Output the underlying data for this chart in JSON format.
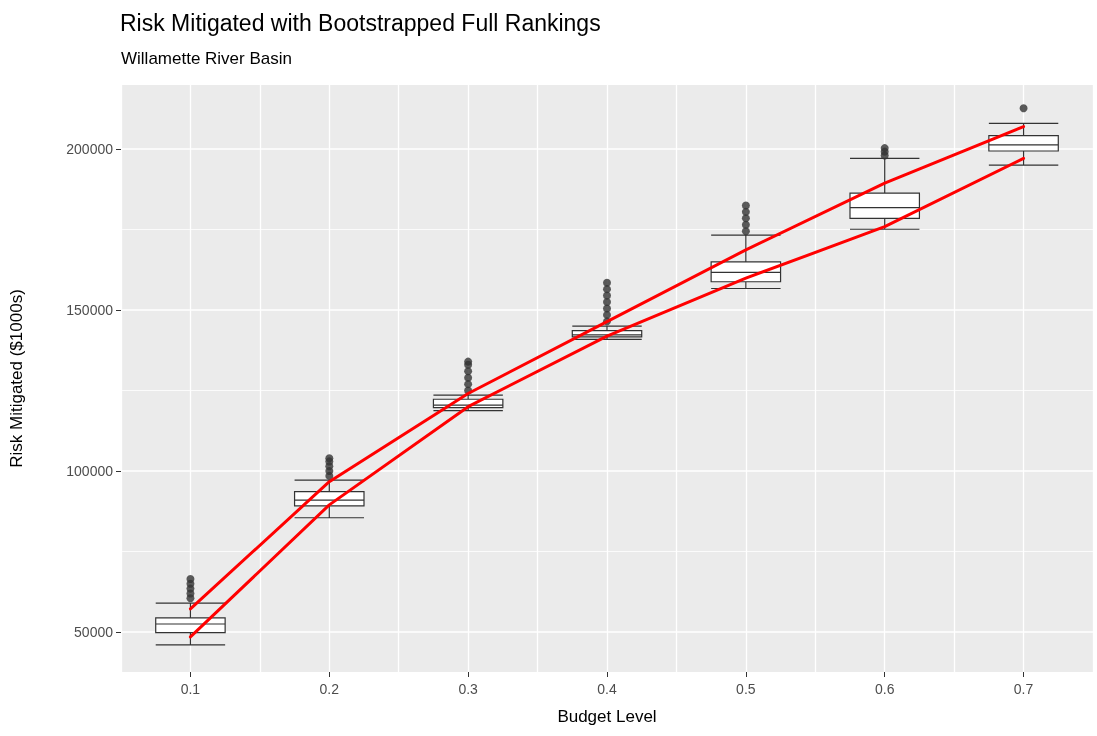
{
  "chart_data": {
    "type": "box",
    "title": "Risk Mitigated with Bootstrapped Full Rankings",
    "subtitle": "Willamette River Basin",
    "xlabel": "Budget Level",
    "ylabel": "Risk Mitigated ($1000s)",
    "categories": [
      "0.1",
      "0.2",
      "0.3",
      "0.4",
      "0.5",
      "0.6",
      "0.7"
    ],
    "ylim": [
      37600,
      219900
    ],
    "yticks": [
      50000,
      100000,
      150000,
      200000
    ],
    "grid": true,
    "marker": "none",
    "series": [
      {
        "color": "#333333",
        "boxes": [
          {
            "low": 46000,
            "q1": 49800,
            "median": 52500,
            "q3": 54400,
            "high": 59000,
            "outliers": [
              60500,
              62000,
              63500,
              65000,
              66500
            ]
          },
          {
            "low": 85500,
            "q1": 89200,
            "median": 91000,
            "q3": 93600,
            "high": 97200,
            "outliers": [
              98500,
              100000,
              101500,
              103000,
              104000
            ]
          },
          {
            "low": 118800,
            "q1": 119700,
            "median": 120500,
            "q3": 122300,
            "high": 123600,
            "outliers": [
              125000,
              127000,
              129000,
              131000,
              133000,
              134000
            ]
          },
          {
            "low": 140900,
            "q1": 141700,
            "median": 142300,
            "q3": 143600,
            "high": 145000,
            "outliers": [
              146500,
              148500,
              150500,
              152500,
              154500,
              156500,
              158500
            ]
          },
          {
            "low": 156700,
            "q1": 158800,
            "median": 161700,
            "q3": 165000,
            "high": 173300,
            "outliers": [
              174500,
              176500,
              178500,
              180500,
              182500
            ]
          },
          {
            "low": 175100,
            "q1": 178500,
            "median": 181800,
            "q3": 186300,
            "high": 197100,
            "outliers": [
              198000,
              199200,
              200300
            ]
          },
          {
            "low": 195000,
            "q1": 199400,
            "median": 201300,
            "q3": 204200,
            "high": 208000,
            "outliers": [
              212700
            ]
          }
        ]
      },
      {
        "type": "line",
        "color": "#ff0000",
        "values": [
          57200,
          96700,
          124100,
          146400,
          168700,
          189400,
          207000
        ]
      },
      {
        "type": "line",
        "color": "#ff0000",
        "values": [
          48500,
          89500,
          120000,
          141900,
          159900,
          175900,
          197100
        ]
      }
    ]
  }
}
